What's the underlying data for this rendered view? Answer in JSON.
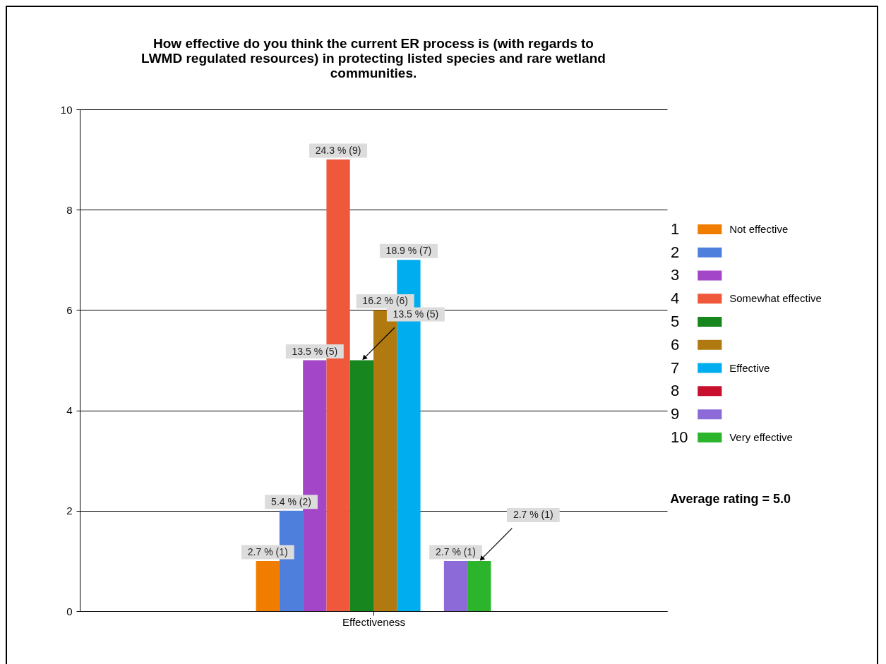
{
  "chart_data": {
    "type": "bar",
    "title": "How effective do you think the current ER process is (with regards to LWMD regulated resources) in protecting listed species and rare wetland communities.",
    "categories": [
      "Effectiveness"
    ],
    "ylim": [
      0,
      10
    ],
    "yticks": [
      0,
      2,
      4,
      6,
      8,
      10
    ],
    "grid": "y",
    "legend": "right",
    "series": [
      {
        "name": "1",
        "color": "#f07d00",
        "values": [
          1
        ],
        "value_labels": [
          "2.7 % (1)"
        ]
      },
      {
        "name": "2",
        "color": "#4f7fdc",
        "values": [
          2
        ],
        "value_labels": [
          "5.4 % (2)"
        ]
      },
      {
        "name": "3",
        "color": "#a347c8",
        "values": [
          5
        ],
        "value_labels": [
          "13.5 % (5)"
        ]
      },
      {
        "name": "4",
        "color": "#f0583c",
        "values": [
          9
        ],
        "value_labels": [
          "24.3 % (9)"
        ]
      },
      {
        "name": "5",
        "color": "#17861e",
        "values": [
          5
        ],
        "value_labels": [
          "13.5 % (5)"
        ]
      },
      {
        "name": "6",
        "color": "#b07a10",
        "values": [
          6
        ],
        "value_labels": [
          "16.2 % (6)"
        ]
      },
      {
        "name": "7",
        "color": "#00aeef",
        "values": [
          7
        ],
        "value_labels": [
          "18.9 % (7)"
        ]
      },
      {
        "name": "8",
        "color": "#c8102e",
        "values": [
          0
        ],
        "value_labels": [
          null
        ]
      },
      {
        "name": "9",
        "color": "#8c6ad8",
        "values": [
          1
        ],
        "value_labels": [
          "2.7 % (1)"
        ]
      },
      {
        "name": "10",
        "color": "#2cb52c",
        "values": [
          1
        ],
        "value_labels": [
          "2.7 % (1)"
        ]
      }
    ],
    "annotations": [
      "Not effective",
      "Somewhat effective",
      "Effective",
      "Very effective",
      "Average rating = 5.0"
    ]
  }
}
